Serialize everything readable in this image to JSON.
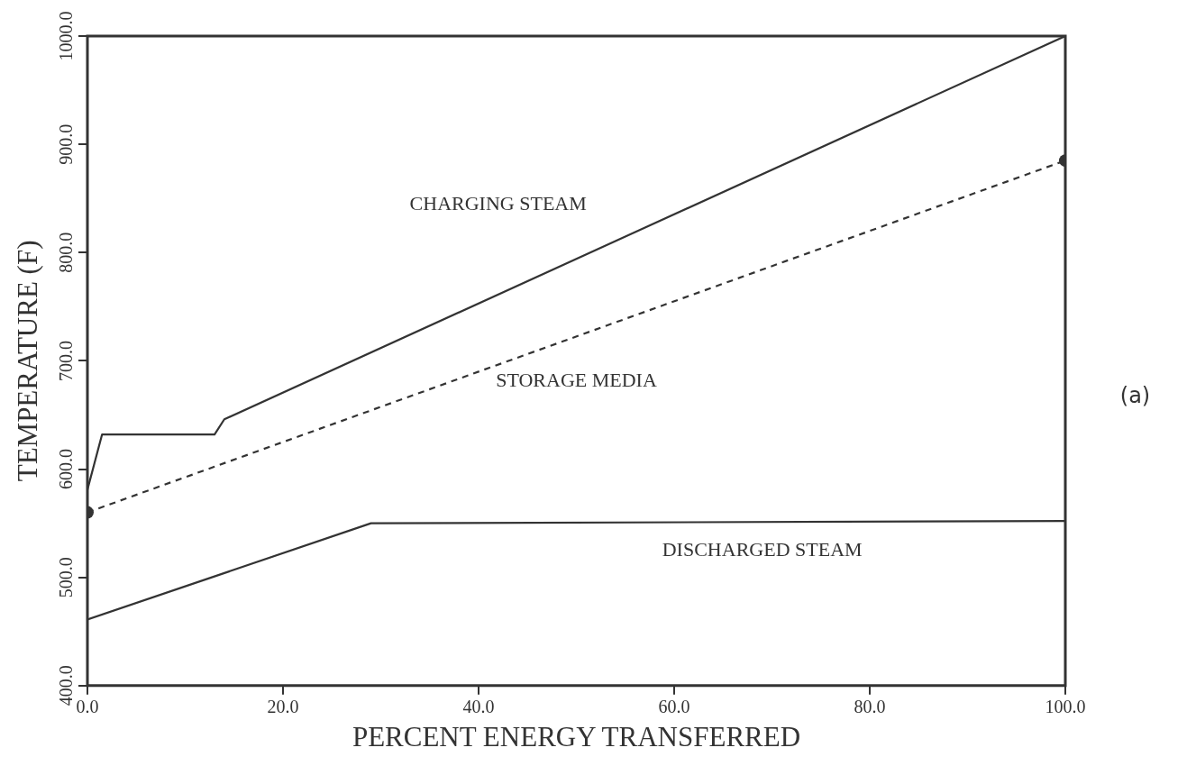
{
  "chart_data": {
    "type": "line",
    "xlabel": "PERCENT ENERGY TRANSFERRED",
    "ylabel": "TEMPERATURE (F)",
    "xlim": [
      0,
      100
    ],
    "xticks": [
      {
        "value": 0,
        "label": "0.0"
      },
      {
        "value": 20,
        "label": "20.0"
      },
      {
        "value": 40,
        "label": "40.0"
      },
      {
        "value": 60,
        "label": "60.0"
      },
      {
        "value": 80,
        "label": "80.0"
      },
      {
        "value": 100,
        "label": "100.0"
      }
    ],
    "ylim": [
      400,
      1000
    ],
    "yticks": [
      {
        "value": 400,
        "label": "400.0"
      },
      {
        "value": 500,
        "label": "500.0"
      },
      {
        "value": 600,
        "label": "600.0"
      },
      {
        "value": 700,
        "label": "700.0"
      },
      {
        "value": 800,
        "label": "800.0"
      },
      {
        "value": 900,
        "label": "900.0"
      },
      {
        "value": 1000,
        "label": "1000.0"
      }
    ],
    "grid": false,
    "legend": false,
    "marker": "none",
    "series": [
      {
        "name": "CHARGING STEAM",
        "color": "#333333",
        "line_style": "solid",
        "x": [
          0,
          1.5,
          13,
          14,
          100
        ],
        "values": [
          581,
          632,
          632,
          646,
          1000
        ]
      },
      {
        "name": "STORAGE MEDIA",
        "color": "#333333",
        "line_style": "dashed",
        "x": [
          0,
          100
        ],
        "values": [
          560,
          885
        ]
      },
      {
        "type": "scatter",
        "color": "#333333",
        "marker": "circle",
        "x": [
          0,
          100
        ],
        "values": [
          560,
          885
        ]
      },
      {
        "name": "DISCHARGED STEAM",
        "color": "#333333",
        "line_style": "solid",
        "x": [
          0,
          29,
          100
        ],
        "values": [
          461,
          550,
          552
        ]
      }
    ],
    "annotations": [
      "(a)"
    ]
  }
}
